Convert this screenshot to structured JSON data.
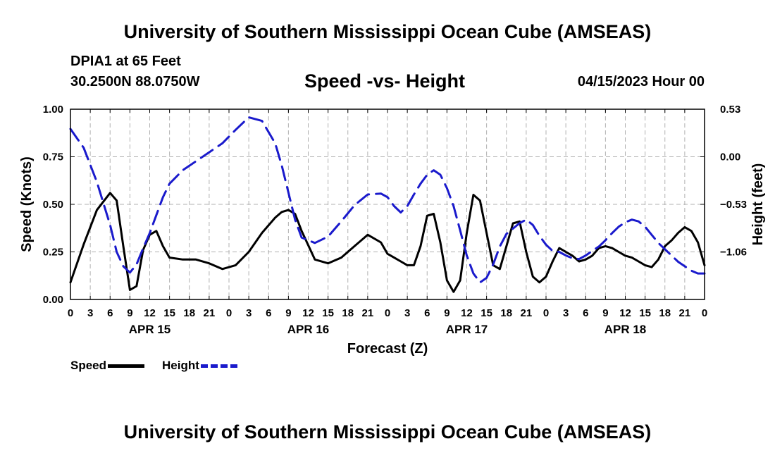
{
  "header": {
    "title": "University of Southern Mississippi Ocean Cube (AMSEAS)",
    "station": "DPIA1 at 65 Feet",
    "coords": "30.2500N  88.0750W",
    "date": "04/15/2023 Hour 00",
    "footer_title": "University of Southern Mississippi Ocean Cube (AMSEAS)"
  },
  "chart_data": {
    "type": "line",
    "title": "Speed -vs- Height",
    "xlabel": "Forecast (Z)",
    "ylabel": "Speed (Knots)",
    "y2label": "Height (feet)",
    "xlim": [
      0,
      96
    ],
    "ylim": [
      0,
      1.0
    ],
    "y2lim": [
      -1.59,
      0.53
    ],
    "yticks": [
      "0.00",
      "0.25",
      "0.50",
      "0.75",
      "1.00"
    ],
    "y2ticks": [
      {
        "value": -1.06,
        "label": "−1.06"
      },
      {
        "value": -0.53,
        "label": "−0.53"
      },
      {
        "value": 0.0,
        "label": "0.00"
      },
      {
        "value": 0.53,
        "label": "0.53"
      }
    ],
    "xticks": [
      "0",
      "3",
      "6",
      "9",
      "12",
      "15",
      "18",
      "21",
      "0",
      "3",
      "6",
      "9",
      "12",
      "15",
      "18",
      "21",
      "0",
      "3",
      "6",
      "9",
      "12",
      "15",
      "18",
      "21",
      "0",
      "3",
      "6",
      "9",
      "12",
      "15",
      "18",
      "21",
      "0"
    ],
    "days": [
      {
        "label": "APR 15",
        "hour": 12
      },
      {
        "label": "APR 16",
        "hour": 36
      },
      {
        "label": "APR 17",
        "hour": 60
      },
      {
        "label": "APR 18",
        "hour": 84
      }
    ],
    "grid": true,
    "legend_position": "bottom-left",
    "series": [
      {
        "name": "Speed",
        "axis": "left",
        "color": "#000000",
        "dash": "solid",
        "x": [
          0,
          2,
          4,
          6,
          7,
          8,
          9,
          10,
          11,
          12,
          13,
          14,
          15,
          17,
          19,
          21,
          23,
          25,
          27,
          29,
          31,
          32,
          33,
          34,
          35,
          37,
          39,
          41,
          43,
          45,
          47,
          48,
          49,
          50,
          51,
          52,
          53,
          54,
          55,
          56,
          57,
          58,
          59,
          60,
          61,
          62,
          63,
          64,
          65,
          66,
          67,
          68,
          69,
          70,
          71,
          72,
          73,
          74,
          75,
          76,
          77,
          78,
          79,
          80,
          81,
          82,
          83,
          84,
          85,
          86,
          87,
          88,
          89,
          90,
          91,
          92,
          93,
          94,
          95,
          96
        ],
        "values": [
          0.09,
          0.29,
          0.47,
          0.56,
          0.52,
          0.28,
          0.05,
          0.07,
          0.26,
          0.34,
          0.36,
          0.28,
          0.22,
          0.21,
          0.21,
          0.19,
          0.16,
          0.18,
          0.25,
          0.35,
          0.43,
          0.46,
          0.47,
          0.45,
          0.36,
          0.21,
          0.19,
          0.22,
          0.28,
          0.34,
          0.3,
          0.24,
          0.22,
          0.2,
          0.18,
          0.18,
          0.28,
          0.44,
          0.45,
          0.3,
          0.1,
          0.04,
          0.1,
          0.35,
          0.55,
          0.52,
          0.35,
          0.18,
          0.16,
          0.28,
          0.4,
          0.41,
          0.25,
          0.12,
          0.09,
          0.12,
          0.2,
          0.27,
          0.25,
          0.23,
          0.2,
          0.21,
          0.23,
          0.27,
          0.28,
          0.27,
          0.25,
          0.23,
          0.22,
          0.2,
          0.18,
          0.17,
          0.21,
          0.28,
          0.31,
          0.35,
          0.38,
          0.36,
          0.3,
          0.18
        ]
      },
      {
        "name": "Height",
        "axis": "right",
        "color": "#1a1acc",
        "dash": "dashed",
        "x": [
          0,
          2,
          4,
          6,
          7,
          8,
          9,
          10,
          11,
          12,
          13,
          14,
          15,
          17,
          19,
          21,
          23,
          25,
          27,
          29,
          31,
          32,
          33,
          34,
          35,
          37,
          39,
          41,
          43,
          45,
          47,
          48,
          49,
          50,
          51,
          52,
          53,
          54,
          55,
          56,
          57,
          58,
          59,
          60,
          61,
          62,
          63,
          64,
          65,
          66,
          67,
          68,
          69,
          70,
          71,
          72,
          73,
          74,
          75,
          76,
          77,
          78,
          79,
          80,
          81,
          82,
          83,
          84,
          85,
          86,
          87,
          88,
          89,
          90,
          91,
          92,
          93,
          94,
          95,
          96
        ],
        "values": [
          0.31,
          0.1,
          -0.28,
          -0.76,
          -1.06,
          -1.22,
          -1.29,
          -1.2,
          -1.02,
          -0.85,
          -0.65,
          -0.45,
          -0.3,
          -0.15,
          -0.05,
          0.05,
          0.15,
          0.3,
          0.44,
          0.4,
          0.15,
          -0.1,
          -0.4,
          -0.7,
          -0.9,
          -0.96,
          -0.89,
          -0.72,
          -0.54,
          -0.42,
          -0.41,
          -0.45,
          -0.55,
          -0.62,
          -0.55,
          -0.42,
          -0.3,
          -0.2,
          -0.15,
          -0.2,
          -0.35,
          -0.55,
          -0.82,
          -1.1,
          -1.3,
          -1.4,
          -1.35,
          -1.2,
          -1.0,
          -0.86,
          -0.8,
          -0.74,
          -0.7,
          -0.76,
          -0.88,
          -0.98,
          -1.05,
          -1.06,
          -1.1,
          -1.13,
          -1.14,
          -1.1,
          -1.05,
          -1.0,
          -0.93,
          -0.85,
          -0.78,
          -0.73,
          -0.7,
          -0.72,
          -0.78,
          -0.87,
          -0.96,
          -1.03,
          -1.1,
          -1.17,
          -1.22,
          -1.27,
          -1.3,
          -1.3
        ]
      }
    ]
  }
}
